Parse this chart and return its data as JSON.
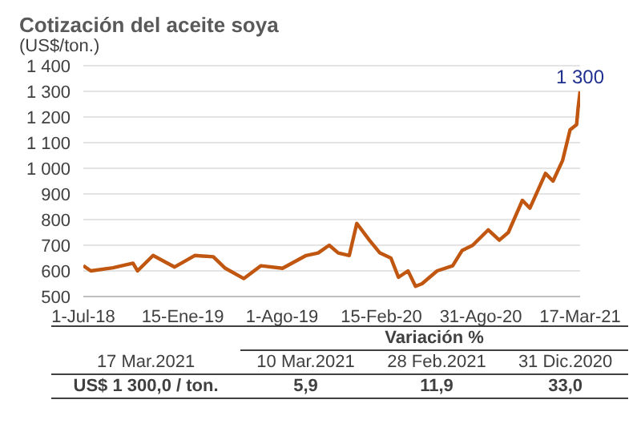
{
  "chart_data": {
    "type": "line",
    "title": "Cotización del aceite soya",
    "subtitle": "(US$/ton.)",
    "x": [
      "2018-07-01",
      "2018-07-16",
      "2018-08-29",
      "2018-10-08",
      "2018-10-17",
      "2018-11-17",
      "2018-12-30",
      "2019-02-08",
      "2019-03-17",
      "2019-04-10",
      "2019-05-17",
      "2019-06-20",
      "2019-08-02",
      "2019-09-18",
      "2019-10-12",
      "2019-11-03",
      "2019-11-21",
      "2019-12-13",
      "2019-12-28",
      "2020-01-22",
      "2020-02-12",
      "2020-03-05",
      "2020-03-20",
      "2020-04-08",
      "2020-04-23",
      "2020-05-06",
      "2020-06-05",
      "2020-07-06",
      "2020-07-25",
      "2020-08-15",
      "2020-09-15",
      "2020-10-07",
      "2020-10-25",
      "2020-11-22",
      "2020-12-07",
      "2021-01-07",
      "2021-01-22",
      "2021-02-10",
      "2021-02-25",
      "2021-03-10",
      "2021-03-13",
      "2021-03-17"
    ],
    "series": [
      {
        "color": "#c0560f",
        "values": [
          620,
          600,
          612,
          630,
          600,
          660,
          615,
          660,
          655,
          610,
          570,
          620,
          610,
          660,
          670,
          700,
          670,
          660,
          785,
          720,
          670,
          650,
          575,
          600,
          540,
          550,
          600,
          620,
          680,
          700,
          760,
          720,
          750,
          875,
          845,
          980,
          950,
          1030,
          1150,
          1170,
          1235,
          1300
        ]
      }
    ],
    "xlim": [
      "2018-07-01",
      "2021-03-17"
    ],
    "xticks": [
      {
        "value": "2018-07-01",
        "label": "1-Jul-18"
      },
      {
        "value": "2019-01-15",
        "label": "15-Ene-19"
      },
      {
        "value": "2019-08-01",
        "label": "1-Ago-19"
      },
      {
        "value": "2020-02-15",
        "label": "15-Feb-20"
      },
      {
        "value": "2020-08-31",
        "label": "31-Ago-20"
      },
      {
        "value": "2021-03-17",
        "label": "17-Mar-21"
      }
    ],
    "ylim": [
      500,
      1400
    ],
    "yticks": [
      500,
      600,
      700,
      800,
      900,
      {
        "value": 1000,
        "label": "1 000"
      },
      {
        "value": 1100,
        "label": "1 100"
      },
      {
        "value": 1200,
        "label": "1 200"
      },
      {
        "value": 1300,
        "label": "1 300"
      },
      {
        "value": 1400,
        "label": "1 400"
      }
    ],
    "grid": "y",
    "legend": false,
    "marker": "none",
    "line_style": "solid",
    "annotations": [
      {
        "text": "1 300",
        "x": "2021-03-17",
        "y": 1300
      },
      "Variación %",
      "17 Mar.2021",
      "10 Mar.2021",
      "28 Feb.2021",
      "31 Dic.2020",
      "US$ 1 300,0 / ton.",
      "5,9",
      "11,9",
      "33,0"
    ]
  }
}
